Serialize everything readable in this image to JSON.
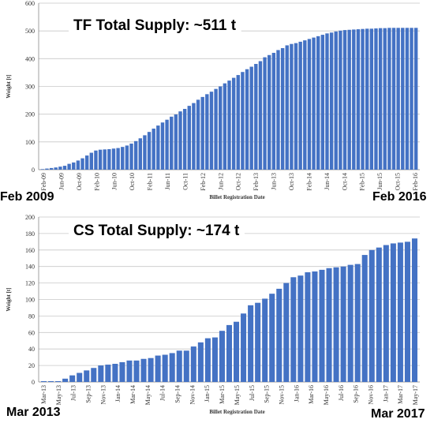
{
  "bar_color": "#4472C4",
  "grid_color": "#c8c8c8",
  "chart_data": [
    {
      "type": "bar",
      "title": "TF Total Supply: ~511 t",
      "ylabel": "Weight [t]",
      "xlabel": "Billet Registration Date",
      "ylim": [
        0,
        600
      ],
      "yticks": [
        0,
        100,
        200,
        300,
        400,
        500,
        600
      ],
      "grid": true,
      "x_tick_labels": [
        "Feb-09",
        "Jun-09",
        "Oct-09",
        "Feb-10",
        "Jun-10",
        "Oct-10",
        "Feb-11",
        "Jun-11",
        "Oct-11",
        "Feb-12",
        "Jun-12",
        "Oct-12",
        "Feb-13",
        "Jun-13",
        "Oct-13",
        "Feb-14",
        "Jun-14",
        "Oct-14",
        "Feb-15",
        "Jun-15",
        "Oct-15",
        "Feb-16"
      ],
      "values": [
        2,
        4,
        6,
        8,
        11,
        14,
        21,
        26,
        33,
        41,
        51,
        61,
        69,
        72,
        73,
        74,
        76,
        78,
        82,
        87,
        94,
        103,
        113,
        124,
        136,
        148,
        159,
        170,
        180,
        191,
        199,
        210,
        219,
        230,
        240,
        252,
        262,
        272,
        281,
        291,
        300,
        311,
        321,
        331,
        341,
        352,
        362,
        371,
        381,
        391,
        405,
        413,
        421,
        431,
        438,
        448,
        453,
        456,
        461,
        466,
        471,
        476,
        481,
        486,
        491,
        494,
        498,
        501,
        503,
        504,
        505,
        506,
        507,
        508,
        508,
        509,
        510,
        510,
        511,
        511,
        511,
        511,
        511,
        511,
        511
      ]
    },
    {
      "type": "bar",
      "title": "CS Total Supply: ~174 t",
      "ylabel": "Weight [t]",
      "xlabel": "Billet Registration Date",
      "ylim": [
        0,
        200
      ],
      "yticks": [
        0,
        20,
        40,
        60,
        80,
        100,
        120,
        140,
        160,
        180,
        200
      ],
      "grid": true,
      "x_tick_labels": [
        "Mar-13",
        "May-13",
        "Jul-13",
        "Sep-13",
        "Nov-13",
        "Jan-14",
        "Mar-14",
        "May-14",
        "Jul-14",
        "Sep-14",
        "Nov-14",
        "Jan-15",
        "Mar-15",
        "May-15",
        "Jul-15",
        "Sep-15",
        "Nov-15",
        "Jan-16",
        "Mar-16",
        "May-16",
        "Jul-16",
        "Sep-16",
        "Nov-16",
        "Jan-17",
        "Mar-17",
        "May-17"
      ],
      "values": [
        1,
        1,
        1,
        4,
        8,
        11,
        14,
        17,
        20,
        21,
        22,
        24,
        26,
        26,
        28,
        29,
        32,
        33,
        35,
        38,
        38,
        43,
        48,
        53,
        54,
        62,
        69,
        73,
        83,
        93,
        96,
        101,
        107,
        113,
        120,
        127,
        129,
        133,
        134,
        136,
        138,
        139,
        140,
        142,
        143,
        154,
        160,
        163,
        166,
        168,
        169,
        170,
        174
      ]
    }
  ],
  "captions": {
    "tf_start": "Feb 2009",
    "tf_end": "Feb 2016",
    "cs_start": "Mar 2013",
    "cs_end": "Mar 2017"
  }
}
